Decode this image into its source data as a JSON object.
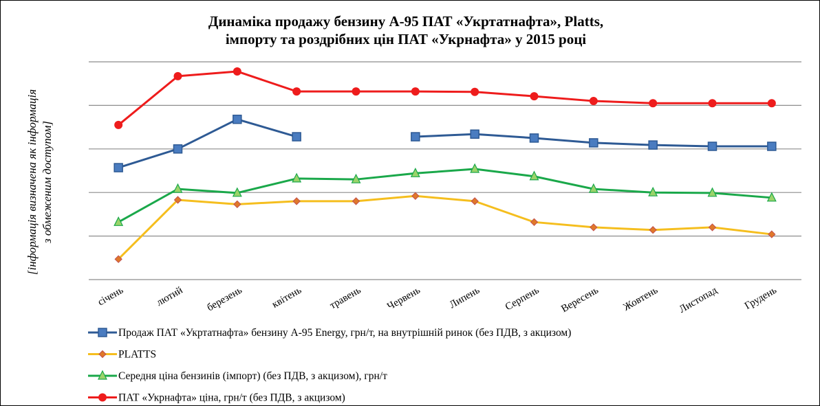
{
  "chart_data": {
    "type": "line",
    "title": [
      "Динаміка продажу  бензину А-95 ПАТ «Укртатнафта», Platts,",
      "імпорту та роздрібних цін ПАТ «Укрнафта» у 2015 році"
    ],
    "y_label": [
      "[інформація визначена як інформація",
      "з обмеженим доступом]"
    ],
    "categories": [
      "січень",
      "лютий",
      "березень",
      "квітень",
      "травень",
      "Червень",
      "Липень",
      "Серпень",
      "Вересень",
      "Жовтень",
      "Листопад",
      "Грудень"
    ],
    "ylim": [
      0,
      5
    ],
    "yticks": [
      0,
      1,
      2,
      3,
      4,
      5
    ],
    "grid": true,
    "series": [
      {
        "name": "Продаж ПАТ «Укртатнафта» бензину А-95 Energy, грн/т, на внутрішній ринок (без ПДВ, з акцизом)",
        "color": "#2e5a94",
        "marker": "square",
        "values": [
          2.57,
          3.0,
          3.68,
          3.28,
          null,
          3.28,
          3.34,
          3.25,
          3.14,
          3.09,
          3.06,
          3.06
        ]
      },
      {
        "name": "PLATTS",
        "color": "#f5be1e",
        "marker": "diamond",
        "values": [
          0.47,
          1.83,
          1.73,
          1.8,
          1.8,
          1.92,
          1.8,
          1.32,
          1.2,
          1.14,
          1.2,
          1.04
        ]
      },
      {
        "name": "Середня ціна бензинів (імпорт)  (без ПДВ, з акцизом), грн/т",
        "color": "#1aa84a",
        "marker": "triangle",
        "values": [
          1.32,
          2.08,
          1.99,
          2.32,
          2.3,
          2.44,
          2.54,
          2.37,
          2.08,
          2.0,
          1.99,
          1.88
        ]
      },
      {
        "name": "ПАТ «Укрнафта» ціна, грн/т (без ПДВ, з акцизом)",
        "color": "#ee1c1c",
        "marker": "circle",
        "values": [
          3.55,
          4.67,
          4.78,
          4.32,
          4.32,
          4.32,
          4.31,
          4.21,
          4.1,
          4.05,
          4.05,
          4.05
        ]
      }
    ]
  }
}
